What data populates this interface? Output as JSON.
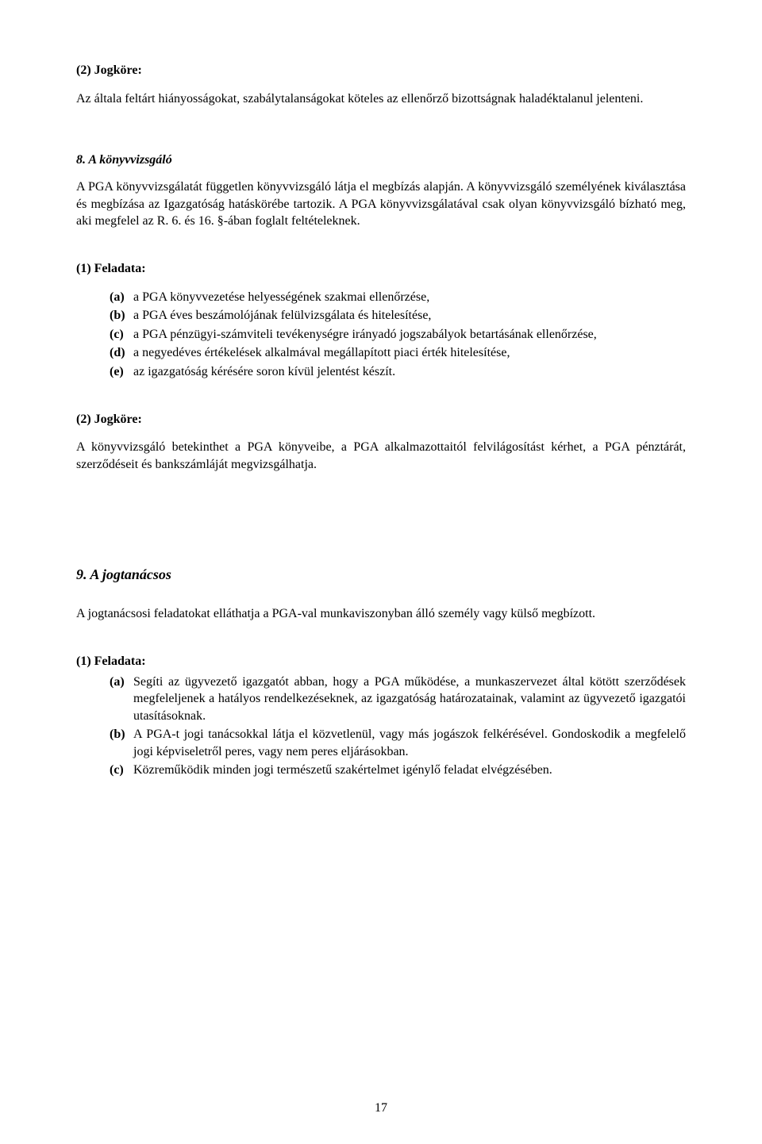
{
  "section2_heading": "(2) Jogköre:",
  "section2_para": "Az általa feltárt hiányosságokat, szabálytalanságokat köteles az ellenőrző bizottságnak haladéktalanul jelenteni.",
  "section8_heading": "8. A könyvvizsgáló",
  "section8_para1": "A PGA könyvvizsgálatát független könyvvizsgáló látja el megbízás alapján. A könyvvizsgáló személyének kiválasztása és megbízása az Igazgatóság hatáskörébe tartozik. A PGA könyvvizsgálatával csak olyan könyvvizsgáló bízható meg, aki megfelel az R. 6. és 16. §-ában foglalt feltételeknek.",
  "feladata1_heading": "(1) Feladata:",
  "feladata1_items": [
    {
      "marker": "(a)",
      "text": "a PGA könyvvezetése helyességének szakmai ellenőrzése,"
    },
    {
      "marker": "(b)",
      "text": "a PGA éves beszámolójának felülvizsgálata és hitelesítése,"
    },
    {
      "marker": "(c)",
      "text": "a PGA pénzügyi-számviteli tevékenységre irányadó jogszabályok betartásának ellenőrzése,"
    },
    {
      "marker": "(d)",
      "text": "a negyedéves értékelések alkalmával megállapított piaci érték hitelesítése,"
    },
    {
      "marker": "(e)",
      "text": "az igazgatóság kérésére soron kívül jelentést készít."
    }
  ],
  "jogkore2_heading": "(2) Jogköre:",
  "jogkore2_para": "A könyvvizsgáló betekinthet a PGA könyveibe, a PGA alkalmazottaitól felvilágosítást kérhet, a PGA pénztárát, szerződéseit és bankszámláját megvizsgálhatja.",
  "section9_heading": "9. A jogtanácsos",
  "section9_para1": "A jogtanácsosi feladatokat elláthatja a PGA-val munkaviszonyban álló személy vagy külső megbízott.",
  "feladata9_heading": "(1) Feladata:",
  "feladata9_items": [
    {
      "marker": "(a)",
      "text": "Segíti az ügyvezető igazgatót abban, hogy a PGA működése, a munkaszervezet által kötött szerződések megfeleljenek a hatályos rendelkezéseknek, az igazgatóság határozatainak, valamint az ügyvezető igazgatói utasításoknak."
    },
    {
      "marker": "(b)",
      "text": "A PGA-t jogi tanácsokkal látja el közvetlenül, vagy más jogászok felkérésével. Gondoskodik a megfelelő jogi képviseletről peres, vagy nem peres eljárásokban."
    },
    {
      "marker": "(c)",
      "text": "Közreműködik minden jogi természetű szakértelmet igénylő feladat elvégzésében."
    }
  ],
  "page_number": "17"
}
